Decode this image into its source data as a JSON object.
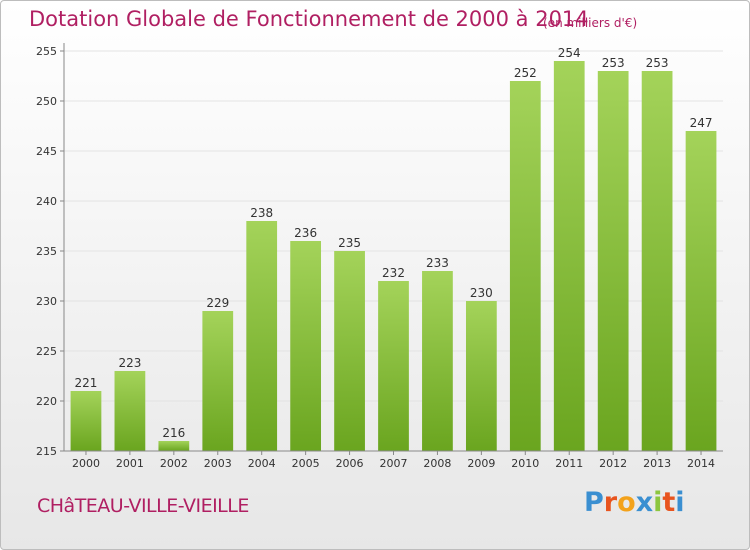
{
  "header": {
    "title": "Dotation Globale de Fonctionnement de 2000 à 2014",
    "subtitle": "(en milliers d'€)"
  },
  "footer": {
    "commune": "CHâTEAU-VILLE-VIEILLE",
    "logo": {
      "letters": [
        "P",
        "r",
        "o",
        "x",
        "i",
        "t",
        "i"
      ],
      "colors": [
        "#3a8fd1",
        "#e8541e",
        "#f3a21b",
        "#3a8fd1",
        "#8cc63f",
        "#e8541e",
        "#3a8fd1"
      ]
    }
  },
  "colors": {
    "bar_light": "#a4d35a",
    "bar_dark": "#6aa51f",
    "axis": "#888888",
    "grid": "#e3e3e3"
  },
  "chart_data": {
    "type": "bar",
    "categories": [
      "2000",
      "2001",
      "2002",
      "2003",
      "2004",
      "2005",
      "2006",
      "2007",
      "2008",
      "2009",
      "2010",
      "2011",
      "2012",
      "2013",
      "2014"
    ],
    "values": [
      221,
      223,
      216,
      229,
      238,
      236,
      235,
      232,
      233,
      230,
      252,
      254,
      253,
      253,
      247
    ],
    "ylim": [
      215,
      255
    ],
    "yticks": [
      215,
      220,
      225,
      230,
      235,
      240,
      245,
      250,
      255
    ],
    "grid": true
  }
}
